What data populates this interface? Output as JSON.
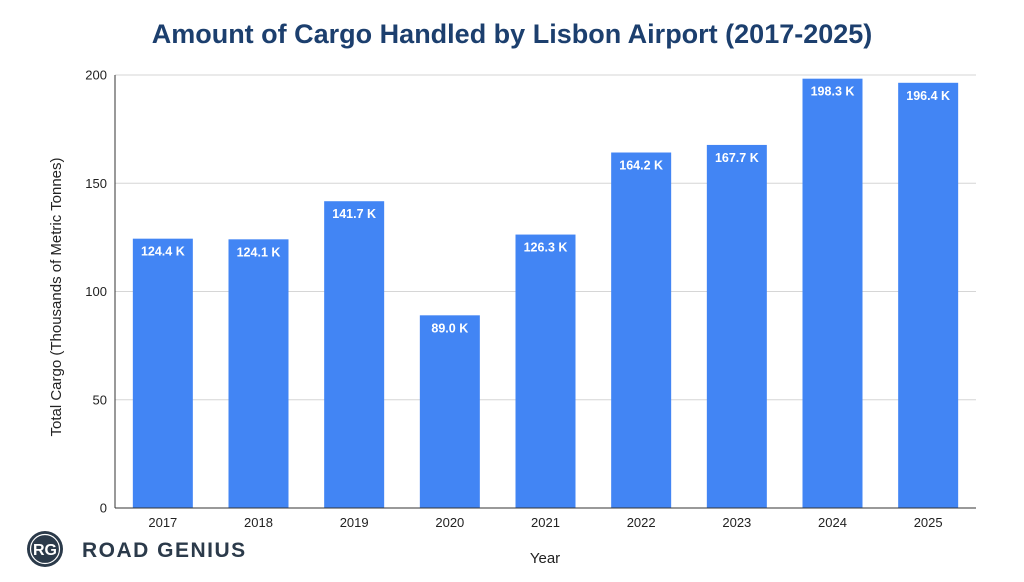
{
  "chart_data": {
    "type": "bar",
    "title": "Amount of Cargo Handled by Lisbon Airport (2017-2025)",
    "xlabel": "Year",
    "ylabel": "Total Cargo (Thousands of Metric Tonnes)",
    "categories": [
      "2017",
      "2018",
      "2019",
      "2020",
      "2021",
      "2022",
      "2023",
      "2024",
      "2025"
    ],
    "values": [
      124.4,
      124.1,
      141.7,
      89.0,
      126.3,
      164.2,
      167.7,
      198.3,
      196.4
    ],
    "data_labels": [
      "124.4 K",
      "124.1 K",
      "141.7 K",
      "89.0 K",
      "126.3 K",
      "164.2 K",
      "167.7 K",
      "198.3 K",
      "196.4 K"
    ],
    "ylim": [
      0,
      200
    ],
    "yticks": [
      0,
      50,
      100,
      150,
      200
    ],
    "grid": true,
    "legend": "none",
    "bar_color": "#4285f4"
  },
  "brand": {
    "monogram": "RG",
    "name": "ROAD GENIUS"
  }
}
